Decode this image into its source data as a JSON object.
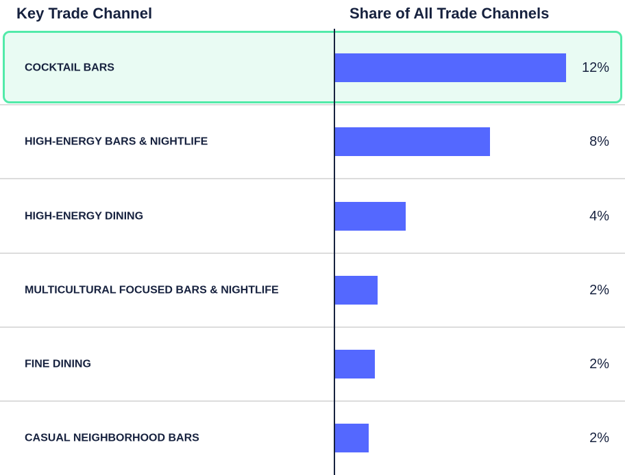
{
  "chart_data": {
    "type": "bar",
    "orientation": "horizontal",
    "headers": [
      "Key Trade Channel",
      "Share of All Trade Channels"
    ],
    "categories": [
      "COCKTAIL BARS",
      "HIGH-ENERGY BARS & NIGHTLIFE",
      "HIGH-ENERGY DINING",
      "MULTICULTURAL FOCUSED BARS & NIGHTLIFE",
      "FINE DINING",
      "CASUAL NEIGHBORHOOD BARS"
    ],
    "values": [
      12,
      8.05,
      3.65,
      2.2,
      2.05,
      1.75
    ],
    "value_labels": [
      "12%",
      "8%",
      "4%",
      "2%",
      "2%",
      "2%"
    ],
    "color": "#5468ff"
  }
}
